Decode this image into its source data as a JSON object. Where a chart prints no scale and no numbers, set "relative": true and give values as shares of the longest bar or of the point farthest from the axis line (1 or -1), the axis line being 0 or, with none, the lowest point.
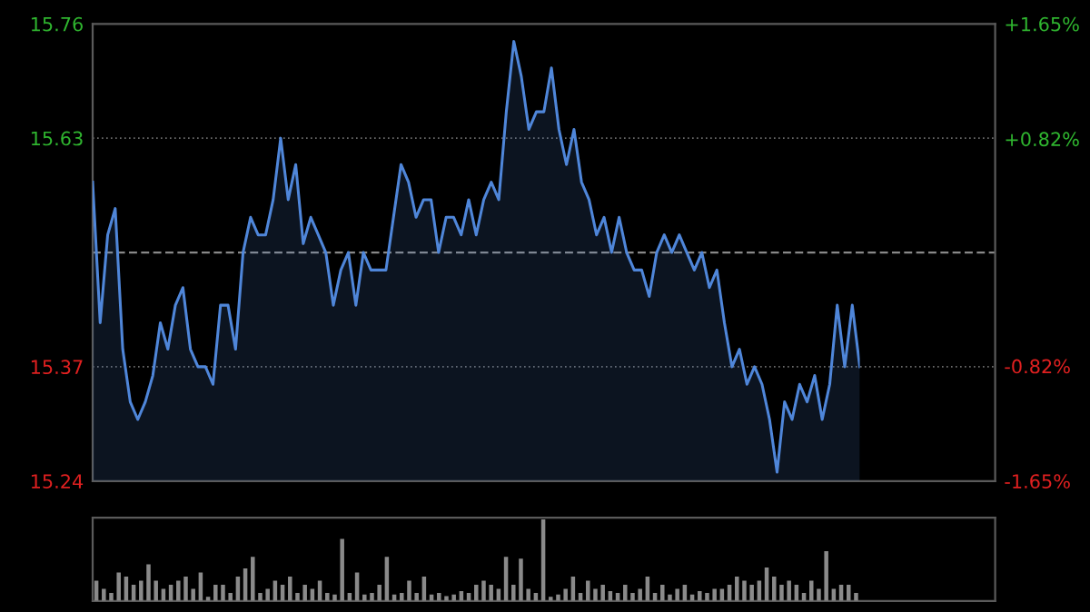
{
  "chart_data": [
    {
      "type": "area",
      "categories": [
        null,
        null,
        null,
        null,
        null,
        null,
        null,
        null,
        null,
        null,
        null,
        null,
        null,
        null,
        null,
        null,
        null,
        null,
        null,
        null,
        null,
        null,
        null,
        null,
        null,
        null,
        null,
        null,
        null,
        null,
        null,
        null,
        null,
        null,
        null,
        null,
        null,
        null,
        null,
        null,
        null,
        null,
        null,
        null,
        null,
        null,
        null,
        null,
        null,
        null,
        null,
        null,
        null,
        null,
        null,
        null,
        null,
        null,
        null,
        null,
        null,
        null,
        null,
        null,
        null,
        null,
        null,
        null,
        null,
        null,
        null,
        null,
        null,
        null,
        null,
        null,
        null,
        null,
        null,
        null,
        null,
        null,
        null,
        null,
        null,
        null,
        null,
        null,
        null,
        null,
        null,
        null,
        null,
        null,
        null,
        null,
        null,
        null,
        null,
        null,
        null,
        null,
        null
      ],
      "series": [
        {
          "color": "#4f86d9",
          "values": [
            15.58,
            15.42,
            15.52,
            15.55,
            15.39,
            15.33,
            15.31,
            15.33,
            15.36,
            15.42,
            15.39,
            15.44,
            15.46,
            15.39,
            15.37,
            15.37,
            15.35,
            15.44,
            15.44,
            15.39,
            15.5,
            15.54,
            15.52,
            15.52,
            15.56,
            15.63,
            15.56,
            15.6,
            15.51,
            15.54,
            15.52,
            15.5,
            15.44,
            15.48,
            15.5,
            15.44,
            15.5,
            15.48,
            15.48,
            15.48,
            15.54,
            15.6,
            15.58,
            15.54,
            15.56,
            15.56,
            15.5,
            15.54,
            15.54,
            15.52,
            15.56,
            15.52,
            15.56,
            15.58,
            15.56,
            15.66,
            15.74,
            15.7,
            15.64,
            15.66,
            15.66,
            15.71,
            15.64,
            15.6,
            15.64,
            15.58,
            15.56,
            15.52,
            15.54,
            15.5,
            15.54,
            15.5,
            15.48,
            15.48,
            15.45,
            15.5,
            15.52,
            15.5,
            15.52,
            15.5,
            15.48,
            15.5,
            15.46,
            15.48,
            15.42,
            15.37,
            15.39,
            15.35,
            15.37,
            15.35,
            15.31,
            15.25,
            15.33,
            15.31,
            15.35,
            15.33,
            15.36,
            15.31,
            15.35,
            15.44,
            15.37,
            15.44,
            15.37
          ]
        }
      ],
      "ylim": [
        15.24,
        15.76
      ],
      "yticks": [
        15.24,
        15.37,
        15.63,
        15.76
      ],
      "y2lim": [
        -1.65,
        1.65
      ],
      "y2ticks": [
        {
          "value": -1.65,
          "label": "-1.65%"
        },
        {
          "value": -0.82,
          "label": "-0.82%"
        },
        {
          "value": 0.82,
          "label": "+0.82%"
        },
        {
          "value": 1.65,
          "label": "+1.65%"
        }
      ],
      "ref_lines": [
        {
          "axis": "y",
          "value": 15.5
        }
      ],
      "grid": "y"
    },
    {
      "type": "bar",
      "relative": true,
      "categories": [
        null,
        null,
        null,
        null,
        null,
        null,
        null,
        null,
        null,
        null,
        null,
        null,
        null,
        null,
        null,
        null,
        null,
        null,
        null,
        null,
        null,
        null,
        null,
        null,
        null,
        null,
        null,
        null,
        null,
        null,
        null,
        null,
        null,
        null,
        null,
        null,
        null,
        null,
        null,
        null,
        null,
        null,
        null,
        null,
        null,
        null,
        null,
        null,
        null,
        null,
        null,
        null,
        null,
        null,
        null,
        null,
        null,
        null,
        null,
        null,
        null,
        null,
        null,
        null,
        null,
        null,
        null,
        null,
        null,
        null,
        null,
        null,
        null,
        null,
        null,
        null,
        null,
        null,
        null,
        null,
        null,
        null,
        null,
        null,
        null,
        null,
        null,
        null,
        null,
        null,
        null,
        null,
        null,
        null,
        null,
        null,
        null,
        null,
        null,
        null,
        null,
        null,
        null
      ],
      "series": [
        {
          "color": "#8a8a8a",
          "values": [
            0.25,
            0.15,
            0.1,
            0.35,
            0.3,
            0.2,
            0.25,
            0.45,
            0.25,
            0.15,
            0.2,
            0.25,
            0.3,
            0.15,
            0.35,
            0.05,
            0.2,
            0.2,
            0.1,
            0.3,
            0.4,
            0.54,
            0.1,
            0.15,
            0.25,
            0.2,
            0.3,
            0.1,
            0.2,
            0.15,
            0.25,
            0.1,
            0.08,
            0.76,
            0.1,
            0.35,
            0.08,
            0.1,
            0.2,
            0.54,
            0.08,
            0.1,
            0.25,
            0.1,
            0.3,
            0.08,
            0.1,
            0.06,
            0.08,
            0.12,
            0.1,
            0.2,
            0.25,
            0.2,
            0.15,
            0.54,
            0.2,
            0.52,
            0.15,
            0.1,
            1.0,
            0.05,
            0.08,
            0.15,
            0.3,
            0.1,
            0.25,
            0.15,
            0.2,
            0.12,
            0.1,
            0.2,
            0.1,
            0.15,
            0.3,
            0.1,
            0.2,
            0.08,
            0.15,
            0.2,
            0.08,
            0.12,
            0.1,
            0.15,
            0.15,
            0.2,
            0.3,
            0.25,
            0.2,
            0.25,
            0.41,
            0.3,
            0.2,
            0.25,
            0.2,
            0.1,
            0.25,
            0.15,
            0.61,
            0.15,
            0.2,
            0.2,
            0.1
          ]
        }
      ]
    }
  ]
}
